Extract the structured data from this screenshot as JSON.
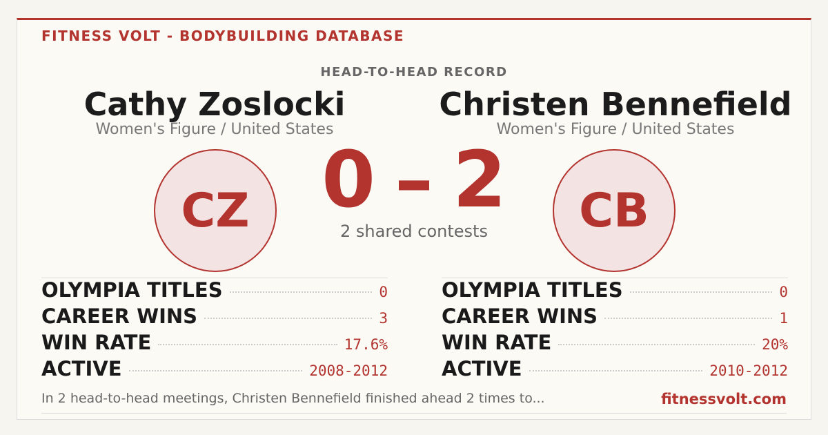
{
  "header": {
    "brand": "FITNESS VOLT - BODYBUILDING DATABASE",
    "subtitle": "HEAD-TO-HEAD RECORD"
  },
  "athletes": [
    {
      "name": "Cathy Zoslocki",
      "division": "Women's Figure / United States",
      "initials": "CZ",
      "stats": [
        {
          "label": "OLYMPIA TITLES",
          "value": "0"
        },
        {
          "label": "CAREER WINS",
          "value": "3"
        },
        {
          "label": "WIN RATE",
          "value": "17.6%"
        },
        {
          "label": "ACTIVE",
          "value": "2008-2012"
        }
      ]
    },
    {
      "name": "Christen Bennefield",
      "division": "Women's Figure / United States",
      "initials": "CB",
      "stats": [
        {
          "label": "OLYMPIA TITLES",
          "value": "0"
        },
        {
          "label": "CAREER WINS",
          "value": "1"
        },
        {
          "label": "WIN RATE",
          "value": "20%"
        },
        {
          "label": "ACTIVE",
          "value": "2010-2012"
        }
      ]
    }
  ],
  "score": {
    "left": "0",
    "separator": "–",
    "right": "2",
    "caption": "2 shared contests"
  },
  "footer": {
    "summary": "In 2 head-to-head meetings, Christen Bennefield finished ahead 2 times to...",
    "site": "fitnessvolt.com"
  }
}
